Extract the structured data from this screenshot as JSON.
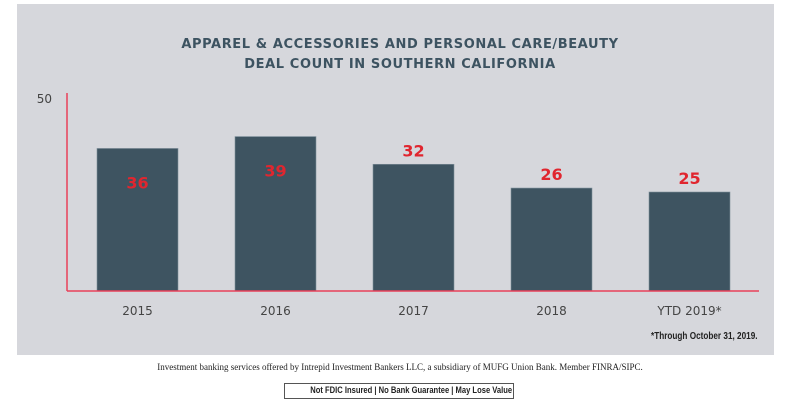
{
  "chart_data": {
    "type": "bar",
    "title": "APPAREL & ACCESSORIES AND PERSONAL CARE/BEAUTY\nDEAL COUNT IN SOUTHERN CALIFORNIA",
    "title_lines": [
      "APPAREL & ACCESSORIES AND PERSONAL CARE/BEAUTY",
      "DEAL COUNT IN SOUTHERN CALIFORNIA"
    ],
    "categories": [
      "2015",
      "2016",
      "2017",
      "2018",
      "YTD 2019*"
    ],
    "values": [
      36,
      39,
      32,
      26,
      25
    ],
    "label_inside": [
      true,
      true,
      false,
      false,
      false
    ],
    "xlabel": "",
    "ylabel": "",
    "ylim": [
      0,
      50
    ],
    "yticks": [
      "50"
    ],
    "grid": false,
    "colors": {
      "bar": "#3e5461",
      "label": "#e0262f",
      "axis": "#e8405a",
      "tick_text": "#444444"
    },
    "footnote": "*Through October 31, 2019."
  },
  "disclaimer": "Investment banking services offered by Intrepid Investment Bankers LLC, a subsidiary of MUFG Union Bank. Member FINRA/SIPC.",
  "notice": "Not FDIC Insured | No Bank Guarantee | May Lose Value"
}
